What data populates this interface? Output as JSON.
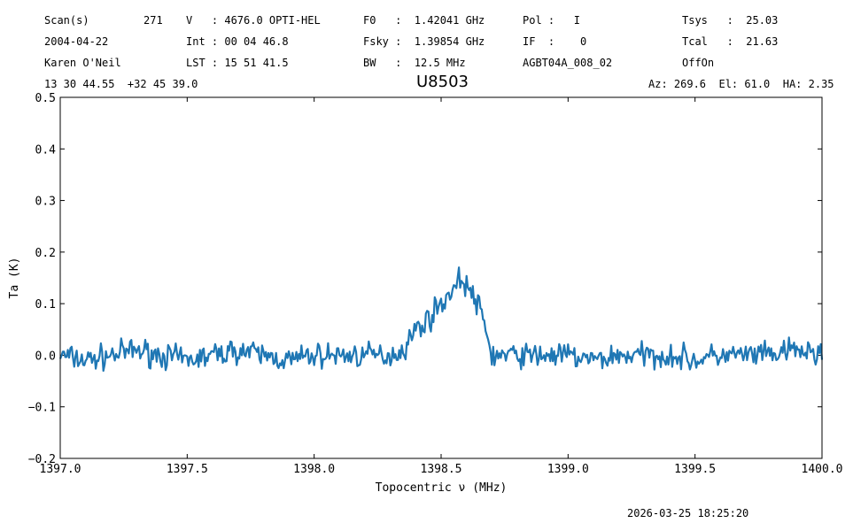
{
  "header": {
    "row1": {
      "scan_label": "Scan(s)",
      "scan_value": "271",
      "v": "V   : 4676.0 OPTI-HEL",
      "f0": "F0   :  1.42041 GHz",
      "pol": "Pol :   I",
      "tsys": "Tsys   :  25.03"
    },
    "row2": {
      "date": "2004-04-22",
      "int": "Int : 00 04 46.8",
      "fsky": "Fsky :  1.39854 GHz",
      "if": "IF  :    0",
      "tcal": "Tcal   :  21.63"
    },
    "row3": {
      "observer": "Karen O'Neil",
      "lst": "LST : 15 51 41.5",
      "bw": "BW   :  12.5 MHz",
      "project": "AGBT04A_008_02",
      "proc": "OffOn"
    },
    "row4": {
      "coords": "13 30 44.55  +32 45 39.0",
      "source": "U8503",
      "azel": "Az: 269.6  El: 61.0  HA: 2.35"
    }
  },
  "timestamp": "2026-03-25 18:25:20",
  "chart_data": {
    "type": "line",
    "title": "U8503",
    "xlabel": "Topocentric ν (MHz)",
    "ylabel": "Ta (K)",
    "xlim": [
      1397.0,
      1400.0
    ],
    "ylim": [
      -0.2,
      0.5
    ],
    "xticks": [
      "1397.0",
      "1397.5",
      "1398.0",
      "1398.5",
      "1399.0",
      "1399.5",
      "1400.0"
    ],
    "yticks": [
      "−0.2",
      "−0.1",
      "0.0",
      "0.1",
      "0.2",
      "0.3",
      "0.4",
      "0.5"
    ],
    "line_color": "#1f77b4",
    "series": [
      {
        "x": [
          1397.0,
          1397.1,
          1397.2,
          1397.3,
          1397.4,
          1397.5,
          1397.6,
          1397.7,
          1397.8,
          1397.9,
          1398.0,
          1398.1,
          1398.2,
          1398.3,
          1398.35,
          1398.4,
          1398.45,
          1398.5,
          1398.55,
          1398.58,
          1398.62,
          1398.66,
          1398.7,
          1398.8,
          1398.9,
          1399.0,
          1399.1,
          1399.2,
          1399.3,
          1399.4,
          1399.5,
          1399.6,
          1399.7,
          1399.8,
          1399.9,
          1400.0
        ],
        "values": [
          0.0,
          -0.01,
          0.0,
          0.01,
          0.0,
          -0.01,
          0.0,
          0.01,
          0.0,
          -0.01,
          0.0,
          0.0,
          0.0,
          0.0,
          0.01,
          0.05,
          0.07,
          0.1,
          0.13,
          0.15,
          0.12,
          0.08,
          0.0,
          0.0,
          0.0,
          0.0,
          -0.01,
          0.0,
          0.0,
          0.0,
          -0.01,
          0.0,
          0.0,
          0.0,
          0.01,
          0.0
        ]
      }
    ]
  }
}
